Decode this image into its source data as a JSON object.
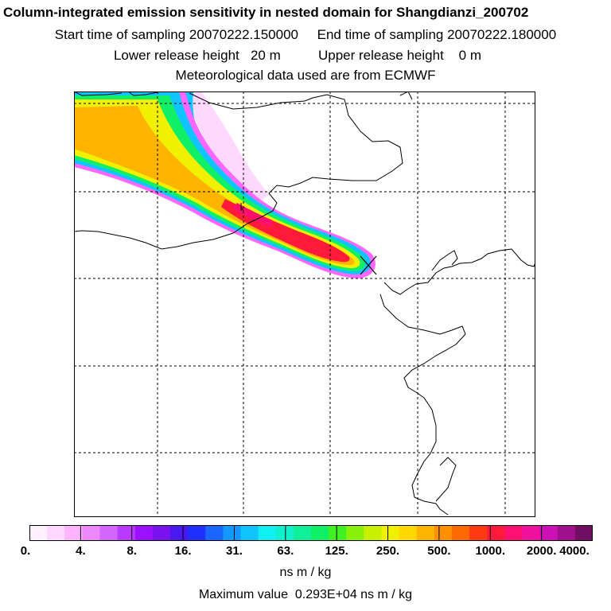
{
  "header": {
    "title": "Column-integrated emission sensitivity in nested domain for Shangdianzi_200702",
    "line2": "Start time of sampling 20070222.150000     End time of sampling 20070222.180000",
    "line3": "Lower release height   20 m          Upper release height    0 m",
    "line4": "Meteorological data used are from ECMWF"
  },
  "colorbar": {
    "colors": [
      "#fff0ff",
      "#ffd8ff",
      "#ffb4ff",
      "#ee88ff",
      "#d266ff",
      "#b83bff",
      "#9a10ff",
      "#7a12ee",
      "#4a18f0",
      "#2030ff",
      "#1a66ff",
      "#1298ff",
      "#10c4ff",
      "#10f0f2",
      "#10f0cc",
      "#10f09a",
      "#10f066",
      "#40f020",
      "#88f00a",
      "#c8f000",
      "#f0f000",
      "#ffd800",
      "#ffb400",
      "#ff9000",
      "#ff6a00",
      "#ff3a10",
      "#ff1a3c",
      "#ff1070",
      "#f010a0",
      "#cc10b4",
      "#a0108c",
      "#700e64"
    ],
    "tick_labels": [
      "0.",
      "4.",
      "8.",
      "16.",
      "31.",
      "63.",
      "125.",
      "250.",
      "500.",
      "1000.",
      "2000.",
      "4000."
    ],
    "units": "ns m / kg"
  },
  "max_value_text": "Maximum value  0.293E+04 ns m / kg",
  "map": {
    "marker": "receptor-cross-icon",
    "plume_colors": {
      "outer": "#ff66ff",
      "blue": "#10c4ff",
      "green": "#10f066",
      "yellow": "#f0f000",
      "orange": "#ffb400",
      "red": "#ff1a3c",
      "pink": "#ffd8ff",
      "violet": "#9a10ff"
    }
  }
}
